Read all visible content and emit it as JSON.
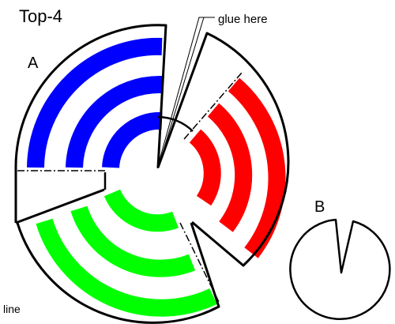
{
  "title": "Top-4",
  "part_a_label": "A",
  "part_b_label": "B",
  "glue_annotation": "glue here",
  "cut_line_annotation": "line",
  "colors": {
    "outline": "#000000",
    "blue_rings": "#0000ff",
    "red_rings": "#ff0000",
    "green_rings": "#00ff00"
  }
}
